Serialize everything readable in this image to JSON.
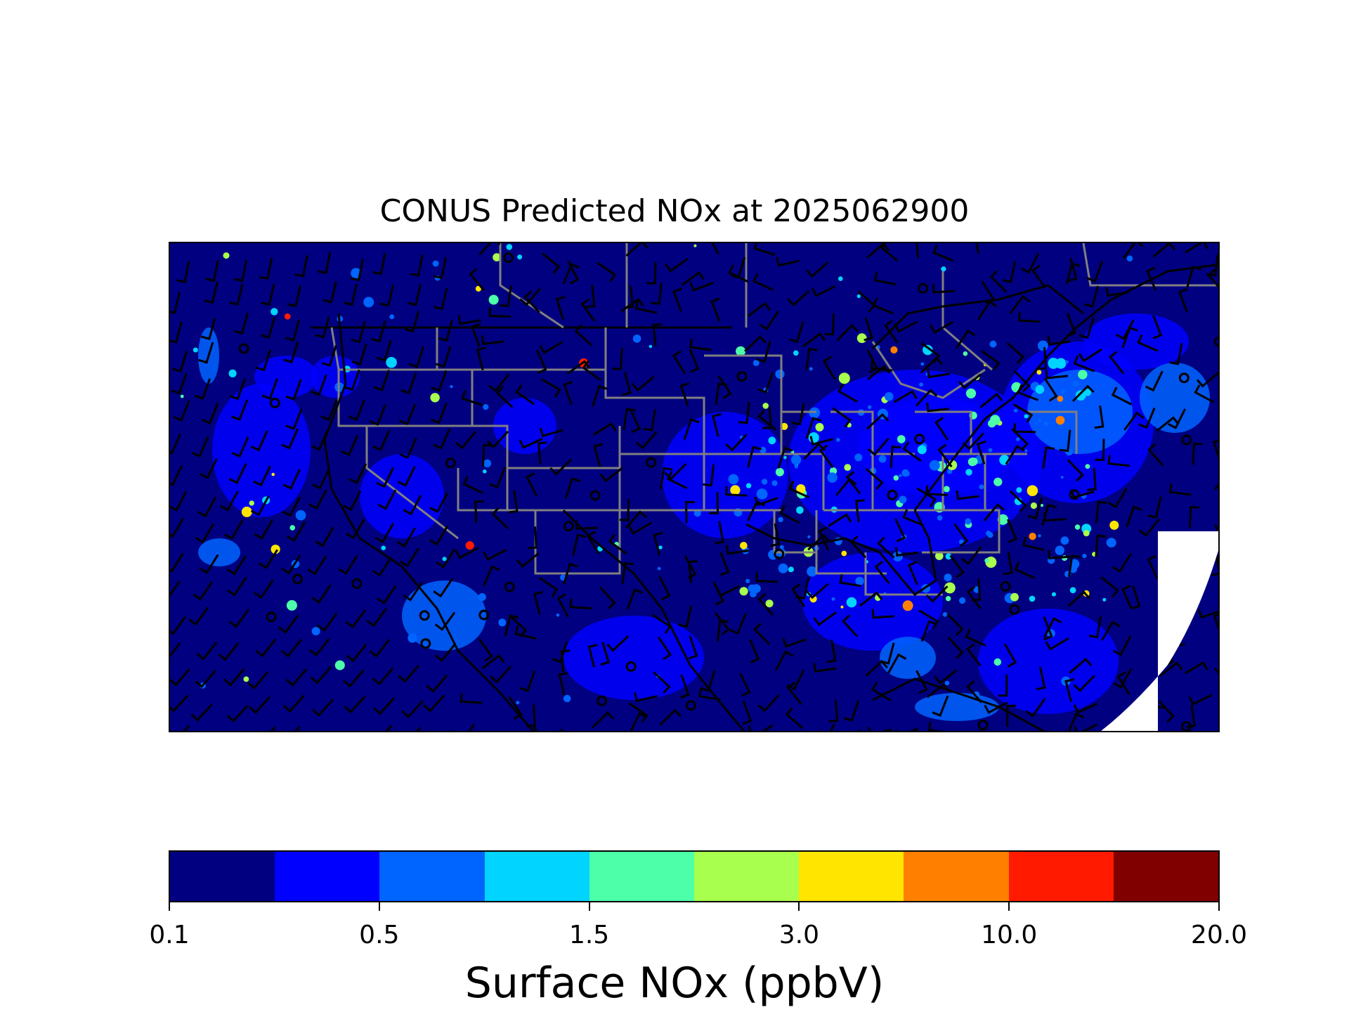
{
  "figure": {
    "title": "CONUS Predicted NOx at 2025062900",
    "colorbar_label": "Surface NOx (ppbV)"
  },
  "colorbar": {
    "colors": [
      "#000080",
      "#0000ff",
      "#0064ff",
      "#00d4ff",
      "#4dffa8",
      "#a8ff4d",
      "#ffe500",
      "#ff8000",
      "#ff1a00",
      "#800000"
    ],
    "tick_labels": [
      "0.1",
      "0.5",
      "1.5",
      "3.0",
      "10.0",
      "20.0"
    ],
    "tick_level_index": [
      0,
      2,
      4,
      6,
      8,
      10
    ]
  },
  "map_style": {
    "background": "#0a0a82",
    "state_border_color": "#808080",
    "coast_color": "#000000",
    "wind_barb_color": "#000000",
    "no_data_color": "#ffffff"
  }
}
